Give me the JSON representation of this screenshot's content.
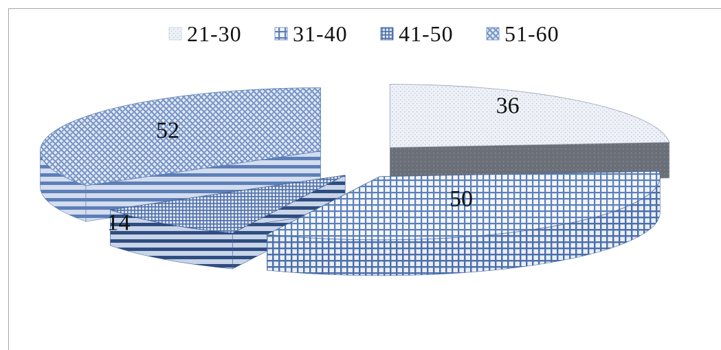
{
  "chart_data": {
    "type": "pie",
    "title": "",
    "categories": [
      "21-30",
      "31-40",
      "41-50",
      "51-60"
    ],
    "values": [
      36,
      50,
      14,
      52
    ],
    "exploded": true,
    "three_d": true,
    "legend_position": "top",
    "series": [
      {
        "name": "21-30",
        "value": 36,
        "color": "#e6eaf2",
        "pattern": "light-dots"
      },
      {
        "name": "31-40",
        "value": 50,
        "color": "#4f72ad",
        "pattern": "grid"
      },
      {
        "name": "41-50",
        "value": 14,
        "color": "#5a7bb3",
        "pattern": "dense-grid"
      },
      {
        "name": "51-60",
        "value": 52,
        "color": "#6f8fc4",
        "pattern": "diagonal-weave"
      }
    ]
  }
}
